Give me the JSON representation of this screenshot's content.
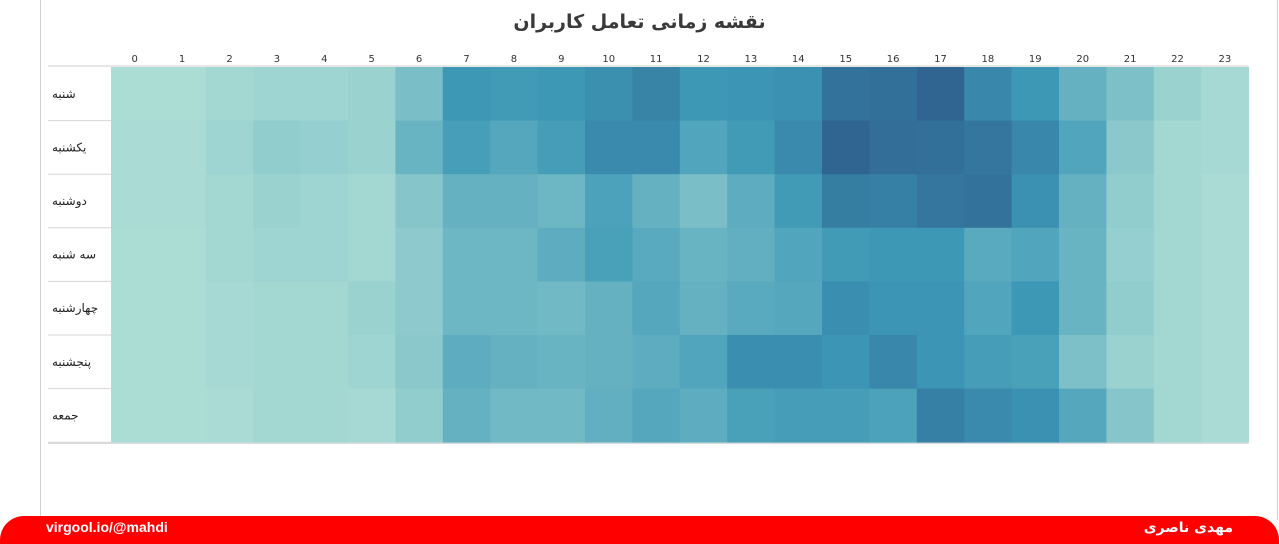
{
  "chart_data": {
    "type": "heatmap",
    "title": "نقشه زمانی تعامل کاربران",
    "x": [
      "0",
      "1",
      "2",
      "3",
      "4",
      "5",
      "6",
      "7",
      "8",
      "9",
      "10",
      "11",
      "12",
      "13",
      "14",
      "15",
      "16",
      "17",
      "18",
      "19",
      "20",
      "21",
      "22",
      "23"
    ],
    "y": [
      "شنبه",
      "یکشنبه",
      "دوشنبه",
      "سه شنبه",
      "چهارشنبه",
      "پنجشنبه",
      "جمعه"
    ],
    "values": [
      [
        5,
        5,
        10,
        12,
        12,
        14,
        30,
        60,
        58,
        60,
        65,
        72,
        60,
        62,
        64,
        82,
        84,
        90,
        70,
        60,
        40,
        28,
        14,
        8
      ],
      [
        6,
        6,
        12,
        18,
        16,
        14,
        38,
        55,
        48,
        56,
        68,
        68,
        50,
        58,
        68,
        90,
        85,
        84,
        80,
        70,
        50,
        22,
        10,
        8
      ],
      [
        6,
        6,
        10,
        14,
        12,
        10,
        24,
        40,
        40,
        36,
        52,
        40,
        30,
        44,
        58,
        76,
        74,
        80,
        82,
        64,
        40,
        18,
        10,
        6
      ],
      [
        5,
        5,
        10,
        12,
        12,
        10,
        20,
        36,
        36,
        44,
        54,
        46,
        38,
        42,
        50,
        58,
        60,
        60,
        46,
        50,
        38,
        16,
        10,
        6
      ],
      [
        5,
        5,
        8,
        10,
        10,
        14,
        20,
        36,
        36,
        34,
        40,
        48,
        40,
        46,
        48,
        66,
        62,
        62,
        50,
        60,
        38,
        18,
        10,
        6
      ],
      [
        5,
        5,
        8,
        10,
        10,
        12,
        22,
        44,
        40,
        38,
        40,
        44,
        50,
        66,
        66,
        62,
        70,
        62,
        56,
        54,
        28,
        14,
        10,
        6
      ],
      [
        5,
        5,
        6,
        10,
        10,
        8,
        18,
        40,
        34,
        34,
        42,
        48,
        44,
        54,
        56,
        56,
        52,
        74,
        68,
        64,
        48,
        24,
        10,
        6
      ]
    ],
    "colors": {
      "low": "#b6e3d8",
      "mid": "#3d98b6",
      "high": "#2b5485"
    },
    "legend": "none",
    "grid": false
  },
  "footer": {
    "left_text": "virgool.io/@mahdi",
    "right_text": "مهدی ناصری",
    "background": "#ff0000"
  }
}
